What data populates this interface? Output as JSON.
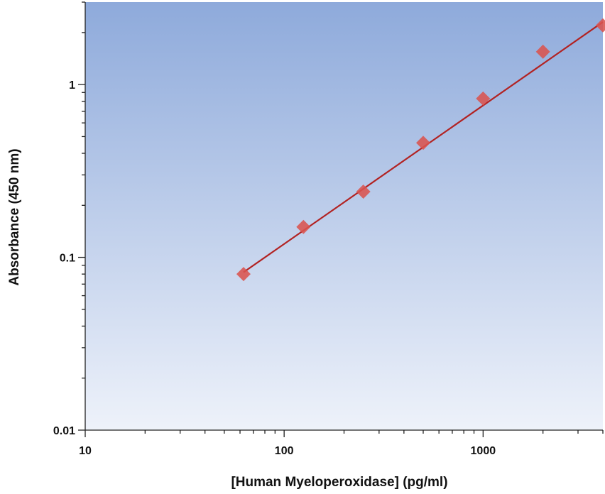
{
  "chart_data": {
    "type": "scatter",
    "title": "",
    "xlabel": "[Human Myeloperoxidase] (pg/ml)",
    "ylabel": "Absorbance (450 nm)",
    "x_scale": "log",
    "y_scale": "log",
    "xlim": [
      10,
      4000
    ],
    "ylim": [
      0.01,
      3
    ],
    "x_ticks": [
      {
        "value": 10,
        "label": "10"
      },
      {
        "value": 100,
        "label": "100"
      },
      {
        "value": 1000,
        "label": "1000"
      }
    ],
    "y_ticks": [
      {
        "value": 0.01,
        "label": "0.01"
      },
      {
        "value": 0.1,
        "label": "0.1"
      },
      {
        "value": 1,
        "label": "1"
      }
    ],
    "grid": false,
    "legend": "none",
    "series": [
      {
        "marker": "diamond",
        "color": "#d9534f",
        "x": [
          62.5,
          125,
          250,
          500,
          1000,
          2000,
          4000
        ],
        "y": [
          0.08,
          0.15,
          0.24,
          0.46,
          0.83,
          1.55,
          2.2
        ]
      }
    ],
    "fit_line": {
      "color": "#b22222",
      "x": [
        62.5,
        4000
      ],
      "y": [
        0.082,
        2.3
      ]
    },
    "plot_background": {
      "top": "#8eaadb",
      "bottom": "#eef2fa"
    }
  }
}
